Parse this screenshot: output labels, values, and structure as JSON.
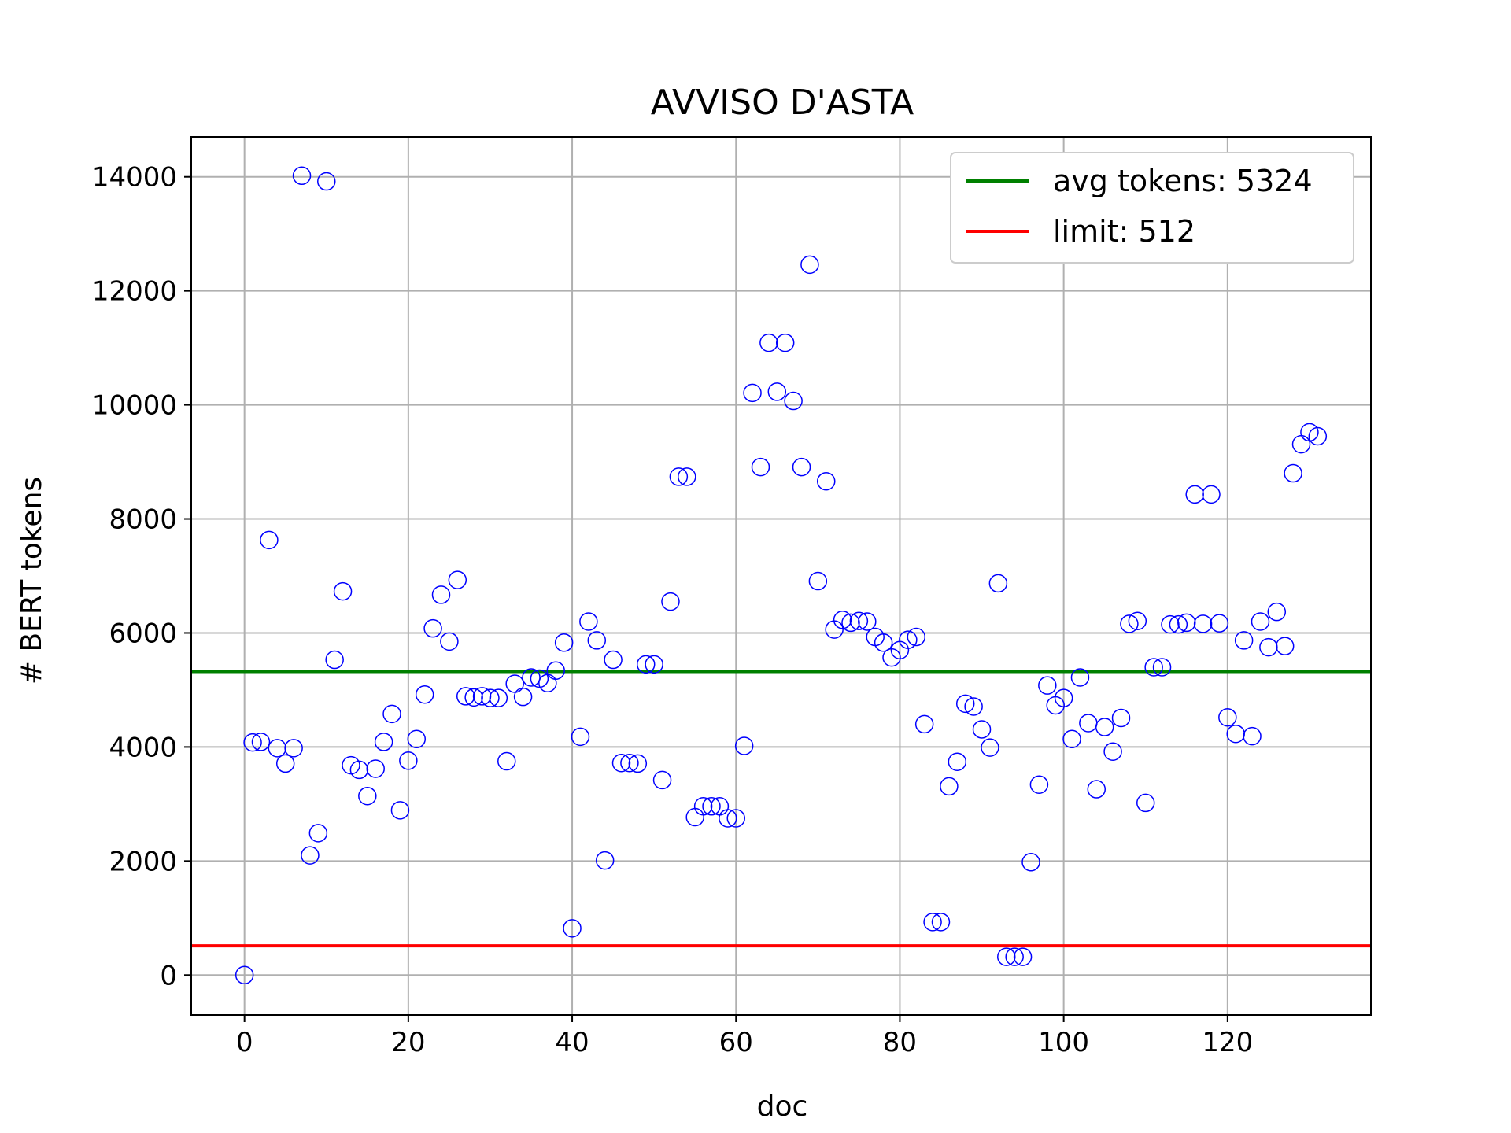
{
  "chart_data": {
    "type": "scatter",
    "title": "AVVISO D'ASTA",
    "xlabel": "doc",
    "ylabel": "# BERT tokens",
    "xlim": [
      -6.5,
      137.5
    ],
    "ylim": [
      -700,
      14700
    ],
    "xticks": [
      0,
      20,
      40,
      60,
      80,
      100,
      120
    ],
    "yticks": [
      0,
      2000,
      4000,
      6000,
      8000,
      10000,
      12000,
      14000
    ],
    "grid": true,
    "legend_position": "top-right",
    "series": [
      {
        "name": "",
        "marker": "hollow-circle",
        "color": "#0000ff",
        "x": [
          0,
          1,
          2,
          3,
          4,
          5,
          6,
          7,
          8,
          9,
          10,
          11,
          12,
          13,
          14,
          15,
          16,
          17,
          18,
          19,
          20,
          21,
          22,
          23,
          24,
          25,
          26,
          27,
          28,
          29,
          30,
          31,
          32,
          33,
          34,
          35,
          36,
          37,
          38,
          39,
          40,
          41,
          42,
          43,
          44,
          45,
          46,
          47,
          48,
          49,
          50,
          51,
          52,
          53,
          54,
          55,
          56,
          57,
          58,
          59,
          60,
          61,
          62,
          63,
          64,
          65,
          66,
          67,
          68,
          69,
          70,
          71,
          72,
          73,
          74,
          75,
          76,
          77,
          78,
          79,
          80,
          81,
          82,
          83,
          84,
          85,
          86,
          87,
          88,
          89,
          90,
          91,
          92,
          93,
          94,
          95,
          96,
          97,
          98,
          99,
          100,
          101,
          102,
          103,
          104,
          105,
          106,
          107,
          108,
          109,
          110,
          111,
          112,
          113,
          114,
          115,
          116,
          117,
          118,
          119,
          120,
          121,
          122,
          123,
          124,
          125,
          126,
          127,
          128,
          129,
          130,
          131
        ],
        "y": [
          0,
          4080,
          4090,
          7630,
          3980,
          3710,
          3980,
          14020,
          2100,
          2490,
          13920,
          5530,
          6730,
          3680,
          3600,
          3140,
          3620,
          4090,
          4580,
          2890,
          3760,
          4140,
          4920,
          6080,
          6670,
          5850,
          6930,
          4890,
          4870,
          4890,
          4860,
          4860,
          3750,
          5110,
          4880,
          5220,
          5200,
          5120,
          5340,
          5830,
          820,
          4180,
          6200,
          5870,
          2010,
          5530,
          3720,
          3720,
          3710,
          5450,
          5450,
          3420,
          6550,
          8740,
          8740,
          2770,
          2960,
          2960,
          2960,
          2750,
          2750,
          4020,
          10210,
          8910,
          11090,
          10230,
          11090,
          10070,
          8910,
          12460,
          6910,
          8660,
          6060,
          6230,
          6180,
          6210,
          6200,
          5930,
          5830,
          5570,
          5700,
          5880,
          5930,
          4400,
          930,
          930,
          3310,
          3740,
          4760,
          4710,
          4310,
          3990,
          6870,
          320,
          320,
          320,
          1980,
          3340,
          5080,
          4730,
          4860,
          4140,
          5220,
          4420,
          3260,
          4350,
          3920,
          4510,
          6160,
          6210,
          3020,
          5400,
          5400,
          6150,
          6150,
          6180,
          8430,
          6160,
          8430,
          6170,
          4520,
          4230,
          5870,
          4190,
          6200,
          5750,
          6370,
          5770,
          8800,
          9310,
          9520,
          9450
        ]
      }
    ],
    "reference_lines": [
      {
        "name": "avg tokens: 5324",
        "y": 5324,
        "color": "#008000"
      },
      {
        "name": "limit: 512",
        "y": 512,
        "color": "#ff0000"
      }
    ]
  }
}
